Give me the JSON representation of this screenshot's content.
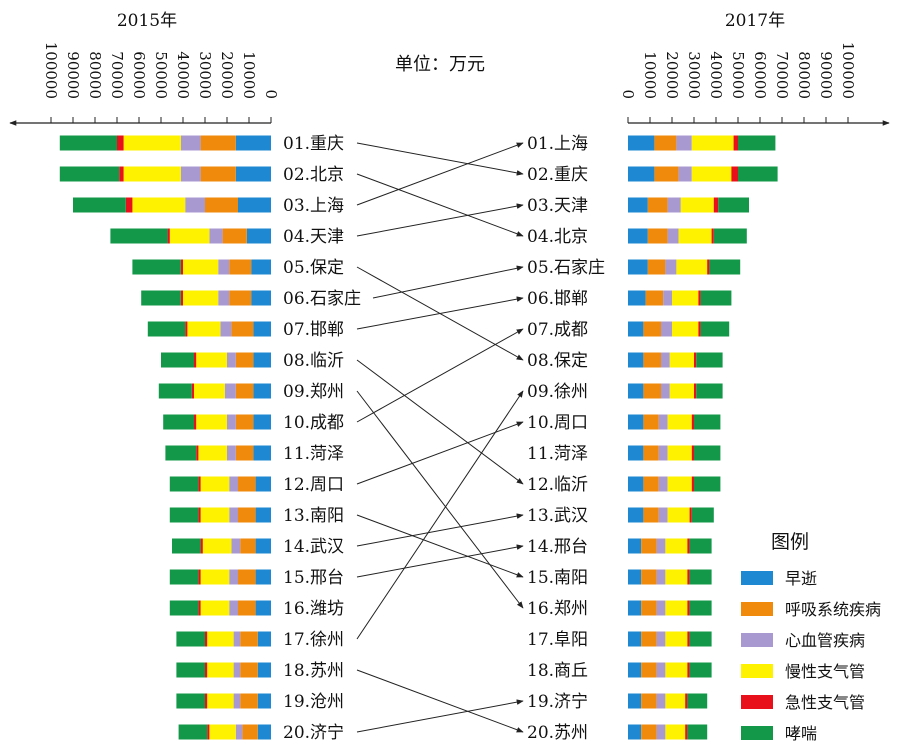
{
  "chart_data": {
    "type": "bar",
    "unit_label": "单位：万元",
    "left_title": "2015年",
    "right_title": "2017年",
    "axis_ticks": [
      0,
      10000,
      20000,
      30000,
      40000,
      50000,
      60000,
      70000,
      80000,
      90000,
      100000
    ],
    "xlim": [
      0,
      100000
    ],
    "stack_order": [
      "早逝",
      "呼吸系统疾病",
      "心血管疾病",
      "慢性支气管",
      "急性支气管",
      "哮喘"
    ],
    "legend": {
      "title": "图例",
      "items": [
        {
          "name": "早逝",
          "color": "#1e88d2"
        },
        {
          "name": "呼吸系统疾病",
          "color": "#f08a0c"
        },
        {
          "name": "心血管疾病",
          "color": "#a89ad0"
        },
        {
          "name": "慢性支气管",
          "color": "#fff200"
        },
        {
          "name": "急性支气管",
          "color": "#e8101a"
        },
        {
          "name": "哮喘",
          "color": "#13984a"
        }
      ]
    },
    "left_cities": [
      {
        "label": "01.重庆",
        "values": [
          16000,
          16000,
          9000,
          26000,
          3000,
          26000
        ]
      },
      {
        "label": "02.北京",
        "values": [
          16000,
          16000,
          9000,
          26000,
          2000,
          27000
        ]
      },
      {
        "label": "03.上海",
        "values": [
          15000,
          15000,
          9000,
          24000,
          3000,
          24000
        ]
      },
      {
        "label": "04.天津",
        "values": [
          11000,
          11000,
          6000,
          18000,
          1000,
          26000
        ]
      },
      {
        "label": "05.保定",
        "values": [
          9000,
          10000,
          5000,
          16000,
          1000,
          22000
        ]
      },
      {
        "label": "06.石家庄",
        "values": [
          9000,
          10000,
          5000,
          16000,
          1000,
          18000
        ]
      },
      {
        "label": "07.邯郸",
        "values": [
          8000,
          10000,
          5000,
          15000,
          1000,
          17000
        ]
      },
      {
        "label": "08.临沂",
        "values": [
          8000,
          8000,
          4000,
          14000,
          1000,
          15000
        ]
      },
      {
        "label": "09.郑州",
        "values": [
          8000,
          8000,
          5000,
          14000,
          1000,
          15000
        ]
      },
      {
        "label": "10.成都",
        "values": [
          8000,
          8000,
          4000,
          14000,
          1000,
          14000
        ]
      },
      {
        "label": "11.菏泽",
        "values": [
          8000,
          8000,
          4000,
          13000,
          1000,
          14000
        ]
      },
      {
        "label": "12.周口",
        "values": [
          7000,
          8000,
          4000,
          13000,
          1000,
          13000
        ]
      },
      {
        "label": "13.南阳",
        "values": [
          7000,
          8000,
          4000,
          13000,
          1000,
          13000
        ]
      },
      {
        "label": "14.武汉",
        "values": [
          7000,
          7000,
          4000,
          13000,
          1000,
          13000
        ]
      },
      {
        "label": "15.邢台",
        "values": [
          7000,
          8000,
          4000,
          13000,
          1000,
          13000
        ]
      },
      {
        "label": "16.潍坊",
        "values": [
          7000,
          8000,
          4000,
          13000,
          1000,
          13000
        ]
      },
      {
        "label": "17.徐州",
        "values": [
          6000,
          8000,
          3000,
          12000,
          1000,
          13000
        ]
      },
      {
        "label": "18.苏州",
        "values": [
          6000,
          8000,
          3000,
          12000,
          1000,
          13000
        ]
      },
      {
        "label": "19.沧州",
        "values": [
          6000,
          8000,
          3000,
          12000,
          1000,
          13000
        ]
      },
      {
        "label": "20.济宁",
        "values": [
          6000,
          7000,
          3000,
          12000,
          1000,
          13000
        ]
      }
    ],
    "right_cities": [
      {
        "label": "01.上海",
        "values": [
          12000,
          10000,
          7000,
          19000,
          2000,
          17000
        ]
      },
      {
        "label": "02.重庆",
        "values": [
          12000,
          11000,
          6000,
          18000,
          3000,
          18000
        ]
      },
      {
        "label": "03.天津",
        "values": [
          9000,
          9000,
          6000,
          15000,
          2000,
          14000
        ]
      },
      {
        "label": "04.北京",
        "values": [
          9000,
          9000,
          5000,
          15000,
          1000,
          15000
        ]
      },
      {
        "label": "05.石家庄",
        "values": [
          9000,
          8000,
          5000,
          14000,
          1000,
          14000
        ]
      },
      {
        "label": "06.邯郸",
        "values": [
          8000,
          8000,
          4000,
          12000,
          1000,
          14000
        ]
      },
      {
        "label": "07.成都",
        "values": [
          7000,
          8000,
          5000,
          12000,
          1000,
          13000
        ]
      },
      {
        "label": "08.保定",
        "values": [
          7000,
          8000,
          4000,
          11000,
          1000,
          12000
        ]
      },
      {
        "label": "09.徐州",
        "values": [
          7000,
          8000,
          4000,
          11000,
          1000,
          12000
        ]
      },
      {
        "label": "10.周口",
        "values": [
          7000,
          7000,
          4000,
          11000,
          1000,
          12000
        ]
      },
      {
        "label": "11.菏泽",
        "values": [
          7000,
          7000,
          4000,
          11000,
          1000,
          12000
        ]
      },
      {
        "label": "12.临沂",
        "values": [
          7000,
          7000,
          4000,
          11000,
          1000,
          12000
        ]
      },
      {
        "label": "13.武汉",
        "values": [
          7000,
          7000,
          4000,
          10000,
          1000,
          10000
        ]
      },
      {
        "label": "14.邢台",
        "values": [
          6000,
          7000,
          4000,
          10000,
          1000,
          10000
        ]
      },
      {
        "label": "15.南阳",
        "values": [
          6000,
          7000,
          4000,
          10000,
          1000,
          10000
        ]
      },
      {
        "label": "16.郑州",
        "values": [
          6000,
          7000,
          4000,
          10000,
          1000,
          10000
        ]
      },
      {
        "label": "17.阜阳",
        "values": [
          6000,
          7000,
          4000,
          10000,
          1000,
          10000
        ]
      },
      {
        "label": "18.商丘",
        "values": [
          6000,
          7000,
          4000,
          10000,
          1000,
          10000
        ]
      },
      {
        "label": "19.济宁",
        "values": [
          6000,
          7000,
          4000,
          9000,
          1000,
          9000
        ]
      },
      {
        "label": "20.苏州",
        "values": [
          6000,
          7000,
          4000,
          9000,
          1000,
          9000
        ]
      }
    ],
    "rank_links": [
      [
        "01.重庆",
        "02.重庆"
      ],
      [
        "02.北京",
        "04.北京"
      ],
      [
        "03.上海",
        "01.上海"
      ],
      [
        "04.天津",
        "03.天津"
      ],
      [
        "05.保定",
        "08.保定"
      ],
      [
        "06.石家庄",
        "05.石家庄"
      ],
      [
        "07.邯郸",
        "06.邯郸"
      ],
      [
        "08.临沂",
        "12.临沂"
      ],
      [
        "09.郑州",
        "16.郑州"
      ],
      [
        "10.成都",
        "07.成都"
      ],
      [
        "12.周口",
        "10.周口"
      ],
      [
        "13.南阳",
        "15.南阳"
      ],
      [
        "14.武汉",
        "13.武汉"
      ],
      [
        "15.邢台",
        "14.邢台"
      ],
      [
        "17.徐州",
        "09.徐州"
      ],
      [
        "18.苏州",
        "20.苏州"
      ],
      [
        "20.济宁",
        "19.济宁"
      ]
    ]
  }
}
